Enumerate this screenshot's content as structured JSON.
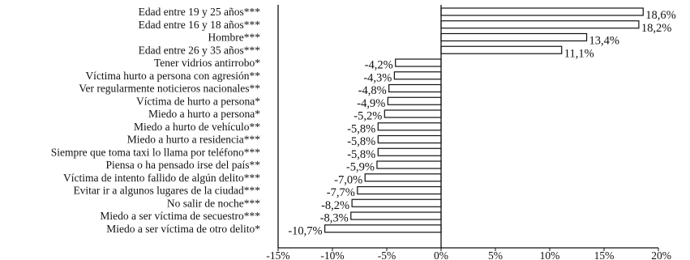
{
  "chart_data": {
    "type": "bar",
    "orientation": "horizontal",
    "categories": [
      "Edad entre 19 y 25 años***",
      "Edad entre 16 y 18 años***",
      "Hombre***",
      "Edad entre 26 y 35 años***",
      "Tener vidrios antirrobo*",
      "Víctima hurto a persona con agresión**",
      "Ver regularmente noticieros nacionales**",
      "Víctima de hurto a persona*",
      "Miedo a hurto a persona*",
      "Miedo a hurto de vehículo**",
      "Miedo a hurto a residencia***",
      "Siempre que toma taxi lo llama por teléfono***",
      "Piensa o ha pensado irse del país**",
      "Víctima de intento fallido de algún delito***",
      "Evitar ir a algunos lugares de la ciudad***",
      "No salir de noche***",
      "Miedo a ser víctima de secuestro***",
      "Miedo a ser víctima de otro delito*"
    ],
    "values": [
      18.6,
      18.2,
      13.4,
      11.1,
      -4.2,
      -4.3,
      -4.8,
      -4.9,
      -5.2,
      -5.8,
      -5.8,
      -5.8,
      -5.9,
      -7.0,
      -7.7,
      -8.2,
      -8.3,
      -10.7
    ],
    "value_labels": [
      "18,6%",
      "18,2%",
      "13,4%",
      "11,1%",
      "-4,2%",
      "-4,3%",
      "-4,8%",
      "-4,9%",
      "-5,2%",
      "-5,8%",
      "-5,8%",
      "-5,8%",
      "-5,9%",
      "-7,0%",
      "-7,7%",
      "-8,2%",
      "-8,3%",
      "-10,7%"
    ],
    "xlim": [
      -15,
      20
    ],
    "xticks": [
      -15,
      -10,
      -5,
      0,
      5,
      10,
      15,
      20
    ],
    "xtick_labels": [
      "-15%",
      "-10%",
      "-5%",
      "0%",
      "5%",
      "10%",
      "15%",
      "20%"
    ],
    "bar_fill": "#ffffff",
    "bar_stroke": "#111111",
    "grid": false,
    "legend": "none"
  }
}
